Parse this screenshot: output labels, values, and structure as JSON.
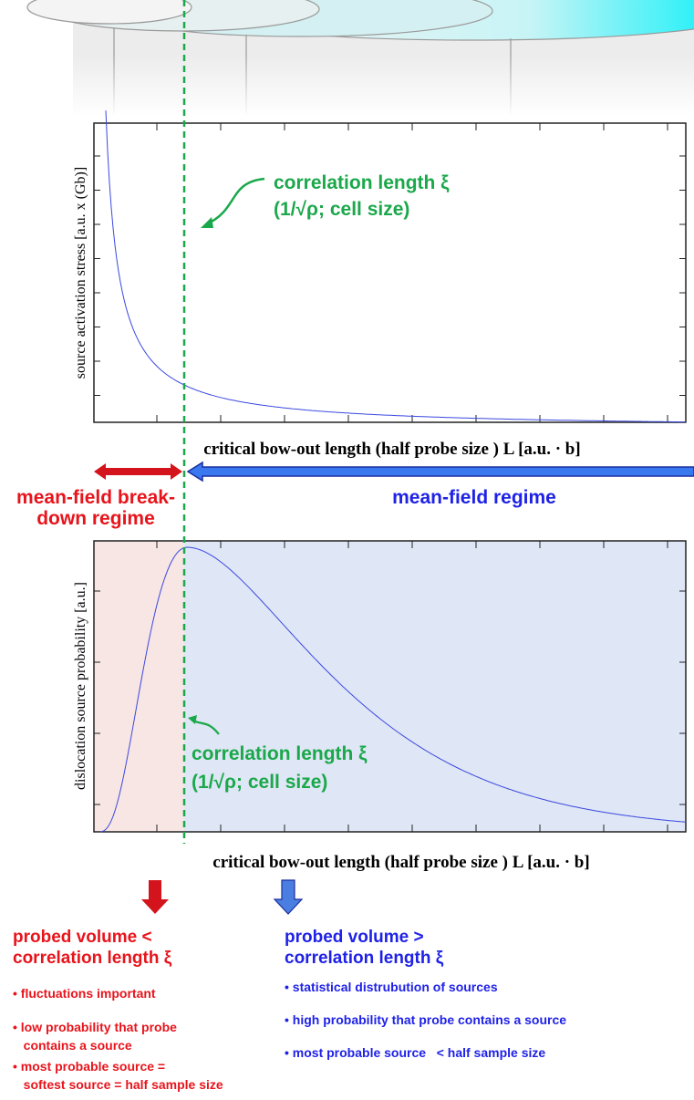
{
  "top_plot": {
    "y_axis_label": "source activation stress  [a.u. x (Gb)]",
    "x_axis_label": "critical bow-out length  (half probe size ) L   [a.u. · b]",
    "annotation": [
      "correlation length ξ",
      "(1/√ρ; cell size)"
    ]
  },
  "regimes": {
    "left": [
      "mean-field break-",
      "down regime"
    ],
    "right": "mean-field regime"
  },
  "bottom_plot": {
    "y_axis_label": "dislocation source probability [a.u.]",
    "x_axis_label": "critical bow-out length  (half probe size ) L   [a.u. · b]",
    "annotation": [
      "correlation length ξ",
      "(1/√ρ; cell size)"
    ]
  },
  "left_panel": {
    "heading": [
      "probed volume <",
      "correlation length ξ"
    ],
    "bullets": [
      "• fluctuations important",
      "• low probability that probe",
      "   contains a source",
      "• most probable source =",
      "   softest source = half sample size"
    ]
  },
  "right_panel": {
    "heading": [
      "probed volume >",
      "correlation length ξ"
    ],
    "bullets": [
      "• statistical distrubution of sources",
      "• high probability that probe contains a source",
      "• most probable source   < half sample size"
    ]
  }
}
